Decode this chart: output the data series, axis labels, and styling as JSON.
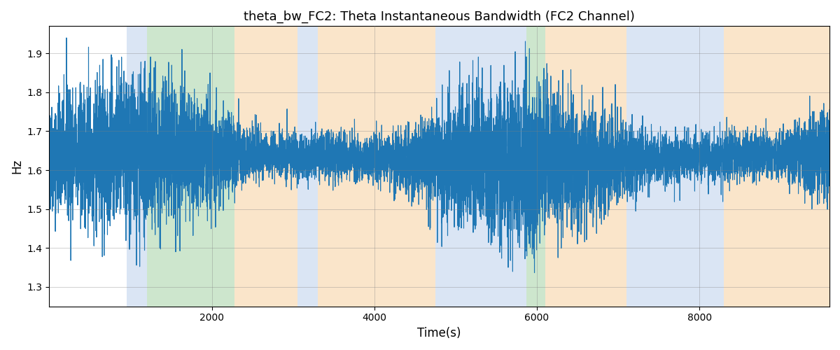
{
  "title": "theta_bw_FC2: Theta Instantaneous Bandwidth (FC2 Channel)",
  "xlabel": "Time(s)",
  "ylabel": "Hz",
  "xlim": [
    0,
    9600
  ],
  "ylim": [
    1.25,
    1.97
  ],
  "yticks": [
    1.3,
    1.4,
    1.5,
    1.6,
    1.7,
    1.8,
    1.9
  ],
  "xticks": [
    2000,
    4000,
    6000,
    8000
  ],
  "line_color": "#1f77b4",
  "line_width": 0.8,
  "background_color": "#ffffff",
  "shaded_regions": [
    {
      "xstart": 950,
      "xend": 1200,
      "color": "#aec6e8",
      "alpha": 0.45
    },
    {
      "xstart": 1200,
      "xend": 2280,
      "color": "#90c890",
      "alpha": 0.45
    },
    {
      "xstart": 2280,
      "xend": 3050,
      "color": "#f5c68a",
      "alpha": 0.45
    },
    {
      "xstart": 3050,
      "xend": 3300,
      "color": "#aec6e8",
      "alpha": 0.45
    },
    {
      "xstart": 3300,
      "xend": 4750,
      "color": "#f5c68a",
      "alpha": 0.45
    },
    {
      "xstart": 4750,
      "xend": 5700,
      "color": "#aec6e8",
      "alpha": 0.45
    },
    {
      "xstart": 5700,
      "xend": 5870,
      "color": "#aec6e8",
      "alpha": 0.45
    },
    {
      "xstart": 5870,
      "xend": 6100,
      "color": "#90c890",
      "alpha": 0.45
    },
    {
      "xstart": 6100,
      "xend": 7100,
      "color": "#f5c68a",
      "alpha": 0.45
    },
    {
      "xstart": 7100,
      "xend": 8300,
      "color": "#aec6e8",
      "alpha": 0.45
    },
    {
      "xstart": 8300,
      "xend": 9600,
      "color": "#f5c68a",
      "alpha": 0.45
    }
  ],
  "seed": 42,
  "n_points": 9500,
  "signal_mean": 1.632,
  "signal_base_std": 0.055,
  "amp_wave_period": 4800,
  "amp_wave_mag": 0.045
}
